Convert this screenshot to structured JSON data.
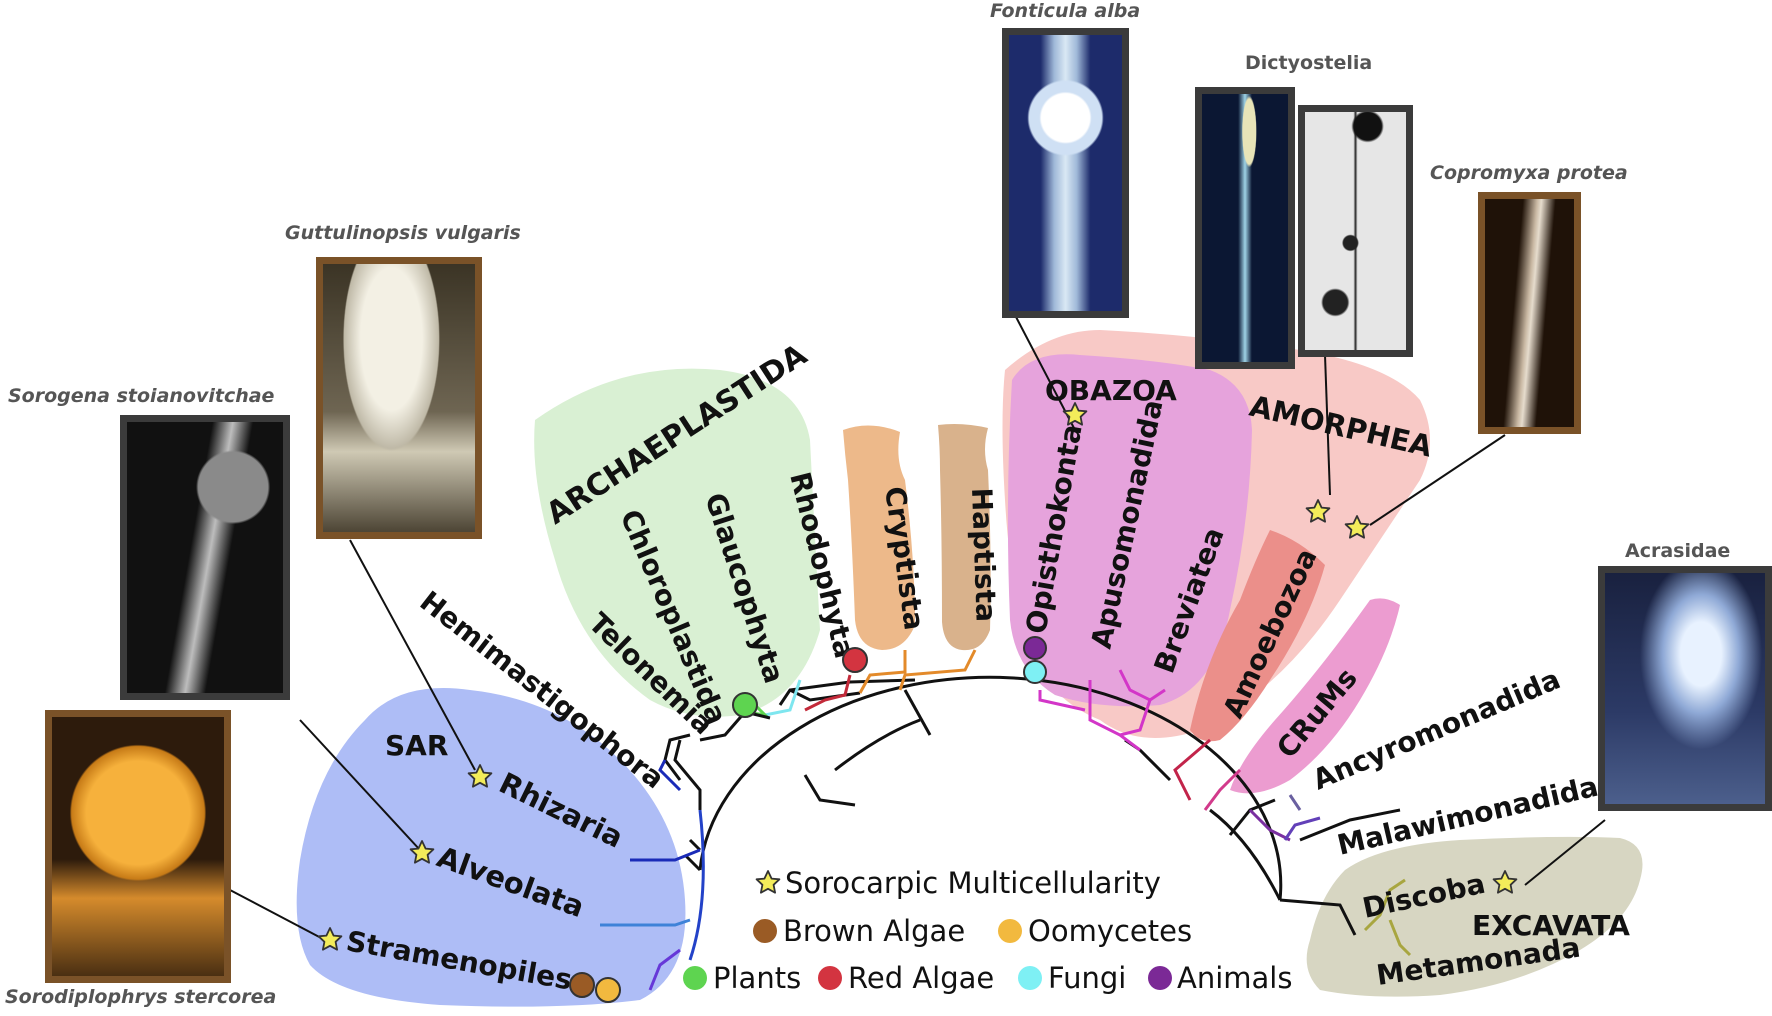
{
  "photo_captions": {
    "fonticula": "Fonticula alba",
    "dictyostelia": "Dictyostelia",
    "copromyxa": "Copromyxa protea",
    "guttulinopsis": "Guttulinopsis vulgaris",
    "sorogena": "Sorogena stoianovitchae",
    "acrasidae": "Acrasidae",
    "sorodiplophrys": "Sorodiplophrys stercorea"
  },
  "supergroups": {
    "archaeplastida": "ARCHAEPLASTIDA",
    "obazoa": "OBAZOA",
    "amorphea": "AMORPHEA",
    "sar": "SAR",
    "excavata": "EXCAVATA"
  },
  "clades": {
    "chloroplastida": "Chloroplastida",
    "glaucophyta": "Glaucophyta",
    "rhodophyta": "Rhodophyta",
    "cryptista": "Cryptista",
    "haptista": "Haptista",
    "telonemia": "Telonemia",
    "hemimastigophora": "Hemimastigophora",
    "rhizaria": "Rhizaria",
    "alveolata": "Alveolata",
    "stramenopiles": "Stramenopiles",
    "opisthokonta": "Opisthokonta",
    "apusomonadida": "Apusomonadida",
    "breviatea": "Breviatea",
    "amoebozoa": "Amoebozoa",
    "crums": "CRuMs",
    "ancyromonadida": "Ancyromonadida",
    "malawimonadida": "Malawimonadida",
    "discoba": "Discoba",
    "metamonada": "Metamonada"
  },
  "legend": {
    "sorocarpic": "Sorocarpic Multicellularity",
    "brown_algae": "Brown Algae",
    "oomycetes": "Oomycetes",
    "plants": "Plants",
    "red_algae": "Red Algae",
    "fungi": "Fungi",
    "animals": "Animals"
  },
  "colors": {
    "brown_algae": "#9a5b25",
    "oomycetes": "#f2b93f",
    "plants": "#5ed450",
    "red_algae": "#d33440",
    "fungi": "#7ef0f4",
    "animals": "#7b2996",
    "star": "#f3ec5a",
    "archaeplastida_bg": "#d9f0d3",
    "sar_bg": "#aebdf6",
    "amorphea_bg": "#f8c9c6",
    "obazoa_bg": "#e6a3dc",
    "excavata_bg": "#d7d6c2"
  }
}
